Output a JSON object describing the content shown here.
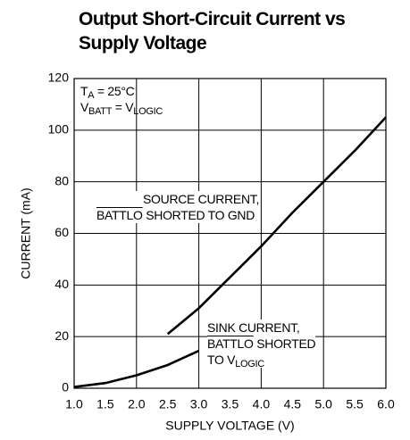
{
  "chart_data": {
    "type": "line",
    "title": [
      "Output Short-Circuit Current vs",
      "Supply Voltage"
    ],
    "xlabel": "SUPPLY VOLTAGE (V)",
    "ylabel": "CURRENT (mA)",
    "xlim": [
      1.0,
      6.0
    ],
    "ylim": [
      0,
      120
    ],
    "xticks": [
      {
        "value": 1.0,
        "label": "1.0"
      },
      {
        "value": 1.5,
        "label": "1.5"
      },
      {
        "value": 2.0,
        "label": "2.0"
      },
      {
        "value": 2.5,
        "label": "2.5"
      },
      {
        "value": 3.0,
        "label": "3.0"
      },
      {
        "value": 3.5,
        "label": "3.5"
      },
      {
        "value": 4.0,
        "label": "4.0"
      },
      {
        "value": 4.5,
        "label": "4.5"
      },
      {
        "value": 5.0,
        "label": "5.0"
      },
      {
        "value": 5.5,
        "label": "5.5"
      },
      {
        "value": 6.0,
        "label": "6.0"
      }
    ],
    "yticks": [
      0,
      20,
      40,
      60,
      80,
      100,
      120
    ],
    "grid": true,
    "series": [
      {
        "name": [
          "SOURCE CURRENT,",
          "BATTLO",
          " SHORTED TO GND"
        ],
        "color": "#000000",
        "x": [
          2.5,
          3.0,
          3.5,
          4.0,
          4.5,
          5.0,
          5.5,
          6.0
        ],
        "values": [
          21,
          31,
          43,
          55,
          68,
          80,
          92,
          105
        ]
      },
      {
        "name": [
          "SINK CURRENT,",
          "BATTLO",
          " SHORTED",
          "TO V",
          "LOGIC"
        ],
        "color": "#000000",
        "x": [
          1.0,
          1.5,
          2.0,
          2.5,
          3.0
        ],
        "values": [
          0.5,
          2,
          5,
          9,
          14.5
        ]
      }
    ],
    "annotations": [
      [
        "T",
        "A",
        " = 25°C"
      ],
      [
        "V",
        "BATT",
        " = V",
        "LOGIC"
      ]
    ]
  }
}
